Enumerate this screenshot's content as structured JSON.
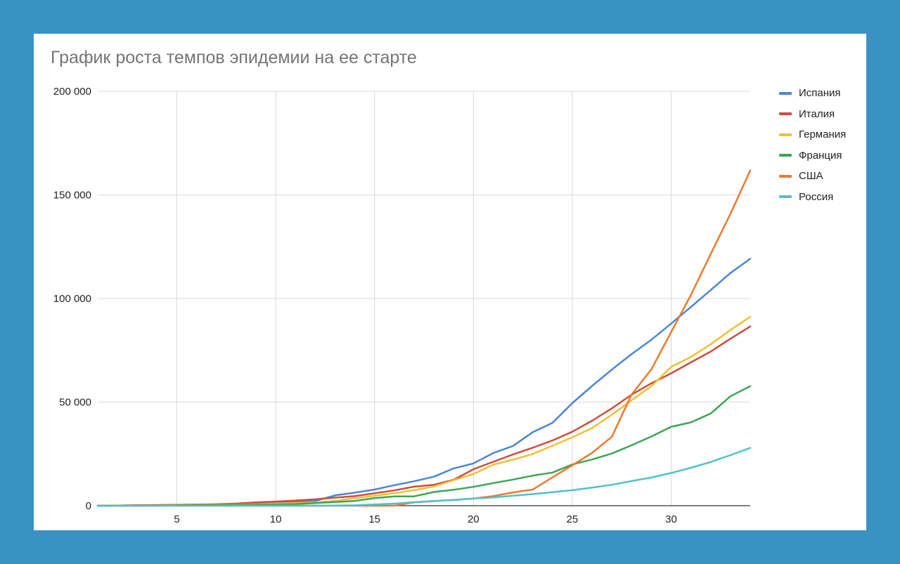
{
  "chart_data": {
    "type": "line",
    "title": "График роста темпов эпидемии на ее старте",
    "xlabel": "",
    "ylabel": "",
    "xlim": [
      1,
      34
    ],
    "ylim": [
      0,
      200000
    ],
    "x_ticks": [
      5,
      10,
      15,
      20,
      25,
      30
    ],
    "y_ticks": [
      0,
      50000,
      100000,
      150000,
      200000
    ],
    "y_tick_labels": [
      "0",
      "50 000",
      "100 000",
      "150 000",
      "200 000"
    ],
    "grid": true,
    "legend_position": "right",
    "x": [
      1,
      2,
      3,
      4,
      5,
      6,
      7,
      8,
      9,
      10,
      11,
      12,
      13,
      14,
      15,
      16,
      17,
      18,
      19,
      20,
      21,
      22,
      23,
      24,
      25,
      26,
      27,
      28,
      29,
      30,
      31,
      32,
      33,
      34
    ],
    "series": [
      {
        "name": "Испания",
        "color": "#4a86d6",
        "values": [
          0,
          100,
          200,
          300,
          400,
          500,
          600,
          800,
          1000,
          1300,
          1700,
          2300,
          5000,
          6300,
          7800,
          9900,
          11800,
          14000,
          18000,
          20400,
          25400,
          28800,
          35500,
          40000,
          49500,
          57800,
          65700,
          73200,
          80100,
          87900,
          95900,
          104100,
          112300,
          119200
        ]
      },
      {
        "name": "Италия",
        "color": "#d04c3f",
        "values": [
          0,
          100,
          200,
          300,
          400,
          500,
          700,
          1000,
          1600,
          2000,
          2500,
          3100,
          3900,
          4600,
          6000,
          7400,
          9200,
          10100,
          12500,
          17600,
          21200,
          24700,
          28000,
          31500,
          35700,
          41000,
          47000,
          53600,
          59100,
          63900,
          69200,
          74400,
          80600,
          86500
        ]
      },
      {
        "name": "Германия",
        "color": "#f2bf31",
        "values": [
          0,
          50,
          100,
          150,
          200,
          300,
          400,
          500,
          700,
          1000,
          1300,
          1600,
          2300,
          3600,
          4800,
          6000,
          7500,
          9300,
          12300,
          15300,
          19800,
          22200,
          25000,
          29000,
          33000,
          37500,
          43900,
          50900,
          57700,
          67000,
          71800,
          77900,
          84800,
          91200
        ]
      },
      {
        "name": "Франция",
        "color": "#3da556",
        "values": [
          0,
          50,
          100,
          150,
          200,
          250,
          300,
          400,
          500,
          600,
          800,
          1300,
          1800,
          2300,
          3700,
          4500,
          4500,
          6600,
          7700,
          9100,
          10900,
          12600,
          14500,
          16000,
          19900,
          22300,
          25200,
          29200,
          33400,
          38100,
          40200,
          44500,
          52800,
          57700
        ]
      },
      {
        "name": "США",
        "color": "#ec7a2d",
        "values": [
          0,
          0,
          0,
          0,
          0,
          0,
          0,
          0,
          0,
          0,
          0,
          0,
          0,
          0,
          0,
          0,
          1600,
          2200,
          2800,
          3500,
          4600,
          6400,
          7800,
          13700,
          19500,
          25500,
          33300,
          53700,
          65800,
          83800,
          101700,
          121500,
          140900,
          161800
        ]
      },
      {
        "name": "Россия",
        "color": "#4ec2cd",
        "values": [
          0,
          0,
          0,
          0,
          0,
          0,
          0,
          0,
          0,
          0,
          0,
          0,
          100,
          200,
          600,
          1000,
          1700,
          2300,
          2700,
          3500,
          4000,
          4800,
          5600,
          6500,
          7500,
          8700,
          10100,
          11900,
          13600,
          15800,
          18300,
          21100,
          24400,
          27900
        ]
      }
    ]
  }
}
